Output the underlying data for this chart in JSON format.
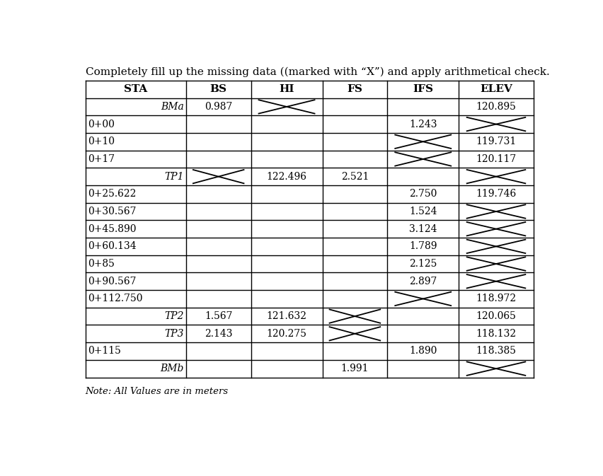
{
  "title": "Completely fill up the missing data ((marked with “X”) and apply arithmetical check.",
  "note": "Note: All Values are in meters",
  "headers": [
    "STA",
    "BS",
    "HI",
    "FS",
    "IFS",
    "ELEV"
  ],
  "rows": [
    {
      "sta": "BMa",
      "bs": "0.987",
      "hi": "X",
      "fs": "",
      "ifs": "",
      "elev": "120.895",
      "sta_italic": true,
      "bs_x": false,
      "hi_x": true,
      "fs_x": false,
      "ifs_x": false,
      "elev_x": false
    },
    {
      "sta": "0+00",
      "bs": "",
      "hi": "",
      "fs": "",
      "ifs": "1.243",
      "elev": "X",
      "sta_italic": false,
      "bs_x": false,
      "hi_x": false,
      "fs_x": false,
      "ifs_x": false,
      "elev_x": true
    },
    {
      "sta": "0+10",
      "bs": "",
      "hi": "",
      "fs": "",
      "ifs": "X",
      "elev": "119.731",
      "sta_italic": false,
      "bs_x": false,
      "hi_x": false,
      "fs_x": false,
      "ifs_x": true,
      "elev_x": false
    },
    {
      "sta": "0+17",
      "bs": "",
      "hi": "",
      "fs": "",
      "ifs": "X",
      "elev": "120.117",
      "sta_italic": false,
      "bs_x": false,
      "hi_x": false,
      "fs_x": false,
      "ifs_x": true,
      "elev_x": false
    },
    {
      "sta": "TP1",
      "bs": "X",
      "hi": "122.496",
      "fs": "2.521",
      "ifs": "",
      "elev": "X",
      "sta_italic": true,
      "bs_x": true,
      "hi_x": false,
      "fs_x": false,
      "ifs_x": false,
      "elev_x": true
    },
    {
      "sta": "0+25.622",
      "bs": "",
      "hi": "",
      "fs": "",
      "ifs": "2.750",
      "elev": "119.746",
      "sta_italic": false,
      "bs_x": false,
      "hi_x": false,
      "fs_x": false,
      "ifs_x": false,
      "elev_x": false
    },
    {
      "sta": "0+30.567",
      "bs": "",
      "hi": "",
      "fs": "",
      "ifs": "1.524",
      "elev": "X",
      "sta_italic": false,
      "bs_x": false,
      "hi_x": false,
      "fs_x": false,
      "ifs_x": false,
      "elev_x": true
    },
    {
      "sta": "0+45.890",
      "bs": "",
      "hi": "",
      "fs": "",
      "ifs": "3.124",
      "elev": "X",
      "sta_italic": false,
      "bs_x": false,
      "hi_x": false,
      "fs_x": false,
      "ifs_x": false,
      "elev_x": true
    },
    {
      "sta": "0+60.134",
      "bs": "",
      "hi": "",
      "fs": "",
      "ifs": "1.789",
      "elev": "X",
      "sta_italic": false,
      "bs_x": false,
      "hi_x": false,
      "fs_x": false,
      "ifs_x": false,
      "elev_x": true
    },
    {
      "sta": "0+85",
      "bs": "",
      "hi": "",
      "fs": "",
      "ifs": "2.125",
      "elev": "X",
      "sta_italic": false,
      "bs_x": false,
      "hi_x": false,
      "fs_x": false,
      "ifs_x": false,
      "elev_x": true
    },
    {
      "sta": "0+90.567",
      "bs": "",
      "hi": "",
      "fs": "",
      "ifs": "2.897",
      "elev": "X",
      "sta_italic": false,
      "bs_x": false,
      "hi_x": false,
      "fs_x": false,
      "ifs_x": false,
      "elev_x": true
    },
    {
      "sta": "0+112.750",
      "bs": "",
      "hi": "",
      "fs": "",
      "ifs": "X",
      "elev": "118.972",
      "sta_italic": false,
      "bs_x": false,
      "hi_x": false,
      "fs_x": false,
      "ifs_x": true,
      "elev_x": false
    },
    {
      "sta": "TP2",
      "bs": "1.567",
      "hi": "121.632",
      "fs": "X",
      "ifs": "",
      "elev": "120.065",
      "sta_italic": true,
      "bs_x": false,
      "hi_x": false,
      "fs_x": true,
      "ifs_x": false,
      "elev_x": false
    },
    {
      "sta": "TP3",
      "bs": "2.143",
      "hi": "120.275",
      "fs": "X",
      "ifs": "",
      "elev": "118.132",
      "sta_italic": true,
      "bs_x": false,
      "hi_x": false,
      "fs_x": true,
      "ifs_x": false,
      "elev_x": false
    },
    {
      "sta": "0+115",
      "bs": "",
      "hi": "",
      "fs": "",
      "ifs": "1.890",
      "elev": "118.385",
      "sta_italic": false,
      "bs_x": false,
      "hi_x": false,
      "fs_x": false,
      "ifs_x": false,
      "elev_x": false
    },
    {
      "sta": "BMb",
      "bs": "",
      "hi": "",
      "fs": "1.991",
      "ifs": "",
      "elev": "X",
      "sta_italic": true,
      "bs_x": false,
      "hi_x": false,
      "fs_x": false,
      "ifs_x": false,
      "elev_x": true
    }
  ],
  "col_widths_rel": [
    1.55,
    1.0,
    1.1,
    1.0,
    1.1,
    1.15
  ],
  "line_color": "#000000",
  "text_color": "#000000",
  "title_fontsize": 11,
  "header_fontsize": 11,
  "cell_fontsize": 10,
  "note_fontsize": 9.5
}
